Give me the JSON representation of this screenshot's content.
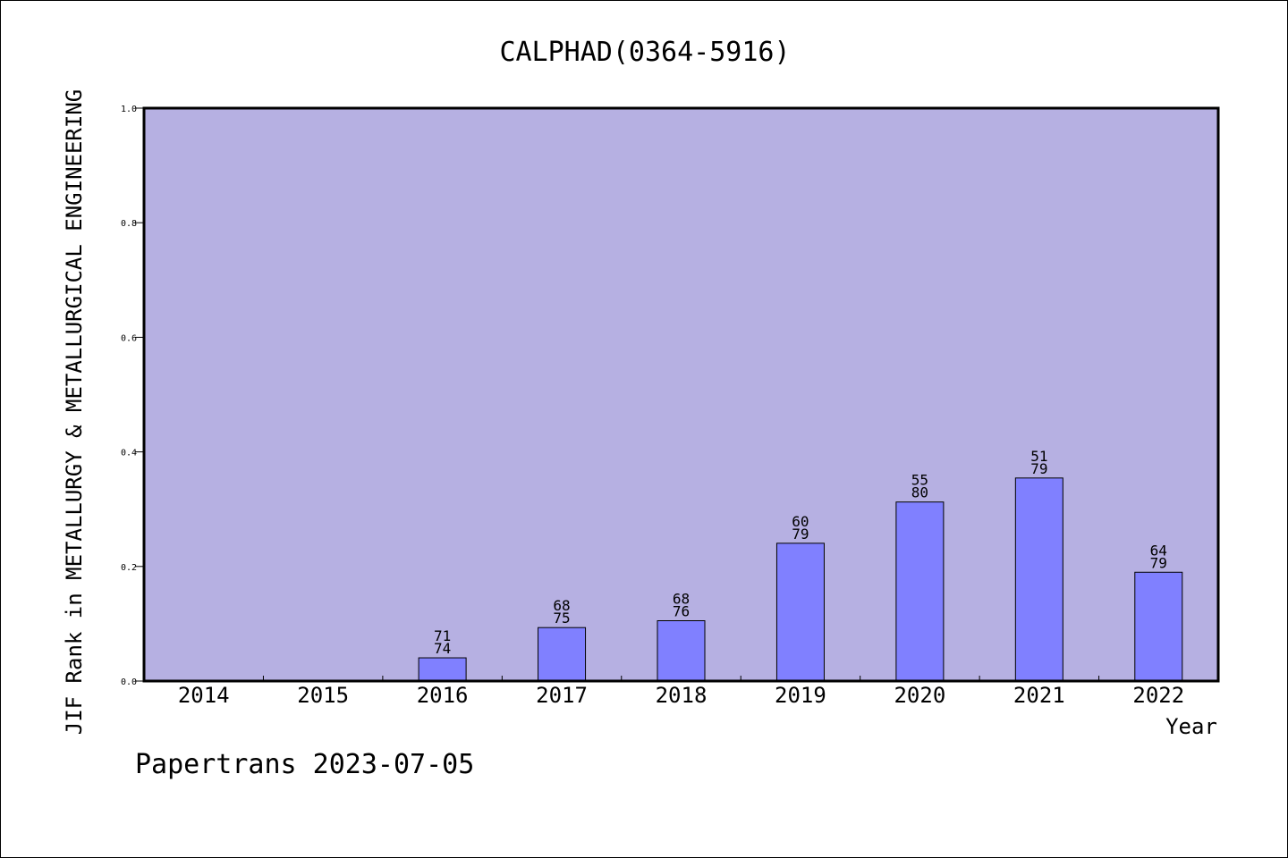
{
  "chart_data": {
    "type": "bar",
    "title": "CALPHAD(0364-5916)",
    "xlabel": "Year",
    "ylabel": "JIF Rank in METALLURGY & METALLURGICAL ENGINEERING",
    "ylim": [
      0,
      1.0
    ],
    "yticks": [
      "0.0",
      "0.2",
      "0.4",
      "0.6",
      "0.8",
      "1.0"
    ],
    "categories": [
      "2014",
      "2015",
      "2016",
      "2017",
      "2018",
      "2019",
      "2020",
      "2021",
      "2022"
    ],
    "values": [
      null,
      null,
      0.0405,
      0.0933,
      0.1053,
      0.2405,
      0.3125,
      0.3544,
      0.1899
    ],
    "ranks": [
      null,
      null,
      "71",
      "68",
      "68",
      "60",
      "55",
      "51",
      "64"
    ],
    "totals": [
      null,
      null,
      "74",
      "75",
      "76",
      "79",
      "80",
      "79",
      "79"
    ],
    "grid": false,
    "colors": {
      "plot_bg": "#b6b0e2",
      "bar": "#8080ff",
      "edge": "#000000"
    }
  },
  "footer": "Papertrans 2023-07-05"
}
